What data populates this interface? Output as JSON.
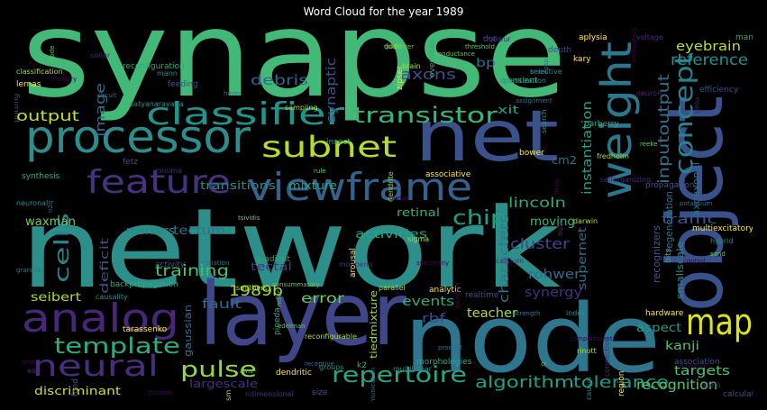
{
  "title": "Word Cloud for the year 1989",
  "chart_data": {
    "type": "wordcloud",
    "title": "Word Cloud for the year 1989",
    "background": "#000000",
    "colormap": "viridis",
    "words": [
      {
        "text": "synapse",
        "weight": 100,
        "color": "#43b977",
        "rotate": false
      },
      {
        "text": "network",
        "weight": 98,
        "color": "#2d8f8a",
        "rotate": false
      },
      {
        "text": "node",
        "weight": 72,
        "color": "#2e758e",
        "rotate": false
      },
      {
        "text": "object",
        "weight": 68,
        "color": "#3a528b",
        "rotate": true
      },
      {
        "text": "layer",
        "weight": 64,
        "color": "#3f4788",
        "rotate": false
      },
      {
        "text": "net",
        "weight": 58,
        "color": "#3b518b",
        "rotate": false
      },
      {
        "text": "processor",
        "weight": 40,
        "color": "#2c8d8c",
        "rotate": false
      },
      {
        "text": "weight",
        "weight": 38,
        "color": "#2a778e",
        "rotate": true
      },
      {
        "text": "analog",
        "weight": 36,
        "color": "#482778",
        "rotate": false
      },
      {
        "text": "view",
        "weight": 35,
        "color": "#33638d",
        "rotate": false
      },
      {
        "text": "frame",
        "weight": 35,
        "color": "#33638d",
        "rotate": false
      },
      {
        "text": "classifier",
        "weight": 32,
        "color": "#1f968b",
        "rotate": false
      },
      {
        "text": "feature",
        "weight": 30,
        "color": "#46327e",
        "rotate": false
      },
      {
        "text": "map",
        "weight": 30,
        "color": "#dde318",
        "rotate": false
      },
      {
        "text": "subnet",
        "weight": 28,
        "color": "#b5de2b",
        "rotate": false
      },
      {
        "text": "neural",
        "weight": 28,
        "color": "#472d7b",
        "rotate": false
      },
      {
        "text": "concept",
        "weight": 25,
        "color": "#26828e",
        "rotate": true
      },
      {
        "text": "transistor",
        "weight": 22,
        "color": "#35b779",
        "rotate": false
      },
      {
        "text": "template",
        "weight": 21,
        "color": "#29af7f",
        "rotate": false
      },
      {
        "text": "repertoire",
        "weight": 20,
        "color": "#22a884",
        "rotate": false
      },
      {
        "text": "pulse",
        "weight": 20,
        "color": "#95d840",
        "rotate": false
      },
      {
        "text": "chip",
        "weight": 18,
        "color": "#1fa088",
        "rotate": false
      },
      {
        "text": "cells",
        "weight": 18,
        "color": "#24868e",
        "rotate": true
      },
      {
        "text": "algorithm",
        "weight": 16,
        "color": "#1fa187",
        "rotate": false
      },
      {
        "text": "tolerance",
        "weight": 16,
        "color": "#1f9a8a",
        "rotate": false
      },
      {
        "text": "reference",
        "weight": 16,
        "color": "#21918c",
        "rotate": false
      },
      {
        "text": "inputoutput",
        "weight": 16,
        "color": "#2c728e",
        "rotate": true
      },
      {
        "text": "training",
        "weight": 15,
        "color": "#4ac16d",
        "rotate": false
      },
      {
        "text": "output",
        "weight": 14,
        "color": "#c2df23",
        "rotate": false
      },
      {
        "text": "axons",
        "weight": 14,
        "color": "#3e4c8a",
        "rotate": false
      },
      {
        "text": "debris",
        "weight": 14,
        "color": "#31688e",
        "rotate": false
      },
      {
        "text": "synaptic",
        "weight": 13,
        "color": "#3b528b",
        "rotate": true
      },
      {
        "text": "image",
        "weight": 13,
        "color": "#2e6f8e",
        "rotate": true
      },
      {
        "text": "eyebrain",
        "weight": 13,
        "color": "#b8de29",
        "rotate": false
      },
      {
        "text": "cluster",
        "weight": 14,
        "color": "#3f4889",
        "rotate": false
      },
      {
        "text": "lincoln",
        "weight": 14,
        "color": "#25ac82",
        "rotate": false
      },
      {
        "text": "characters",
        "weight": 13,
        "color": "#2a788e",
        "rotate": true
      },
      {
        "text": "instantiation",
        "weight": 13,
        "color": "#1f9e89",
        "rotate": true
      },
      {
        "text": "recognition",
        "weight": 14,
        "color": "#54c568",
        "rotate": false
      },
      {
        "text": "targets",
        "weight": 13,
        "color": "#4ec36b",
        "rotate": false
      },
      {
        "text": "synergy",
        "weight": 13,
        "color": "#472f7d",
        "rotate": false
      },
      {
        "text": "rohwer",
        "weight": 13,
        "color": "#2f6c8e",
        "rotate": false
      },
      {
        "text": "events",
        "weight": 13,
        "color": "#26ad81",
        "rotate": false
      },
      {
        "text": "teacher",
        "weight": 12,
        "color": "#a5db36",
        "rotate": false
      },
      {
        "text": "error",
        "weight": 13,
        "color": "#67cc5c",
        "rotate": false
      },
      {
        "text": "fault",
        "weight": 12,
        "color": "#2f6b8e",
        "rotate": false
      },
      {
        "text": "1989b",
        "weight": 14,
        "color": "#a8db34",
        "rotate": false
      },
      {
        "text": "moving",
        "weight": 12,
        "color": "#37b878",
        "rotate": false
      },
      {
        "text": "traffic",
        "weight": 12,
        "color": "#3a548c",
        "rotate": false
      },
      {
        "text": "activities",
        "weight": 11,
        "color": "#20a386",
        "rotate": false
      },
      {
        "text": "tectum",
        "weight": 11,
        "color": "#2e6e8e",
        "rotate": false
      },
      {
        "text": "markers",
        "weight": 11,
        "color": "#23888e",
        "rotate": false
      },
      {
        "text": "waxman",
        "weight": 11,
        "color": "#6ccd5a",
        "rotate": false
      },
      {
        "text": "deficit",
        "weight": 11,
        "color": "#3d4e8a",
        "rotate": true
      },
      {
        "text": "transitions",
        "weight": 11,
        "color": "#238a8d",
        "rotate": false
      },
      {
        "text": "mixture",
        "weight": 11,
        "color": "#22a785",
        "rotate": false
      },
      {
        "text": "retinal",
        "weight": 11,
        "color": "#2ab07f",
        "rotate": false
      },
      {
        "text": "tectal",
        "weight": 11,
        "color": "#45337d",
        "rotate": false
      },
      {
        "text": "seibert",
        "weight": 11,
        "color": "#addc30",
        "rotate": false
      },
      {
        "text": "aspect",
        "weight": 11,
        "color": "#1e9b8a",
        "rotate": false
      },
      {
        "text": "kanji",
        "weight": 11,
        "color": "#4cc26c",
        "rotate": false
      },
      {
        "text": "discriminant",
        "weight": 10,
        "color": "#d0e11c",
        "rotate": false
      },
      {
        "text": "largescale",
        "weight": 11,
        "color": "#46307e",
        "rotate": false
      },
      {
        "text": "supernet",
        "weight": 11,
        "color": "#2e6e8e",
        "rotate": true
      },
      {
        "text": "smallscale",
        "weight": 10,
        "color": "#23898e",
        "rotate": true
      },
      {
        "text": "recognizers",
        "weight": 10,
        "color": "#38588c",
        "rotate": true
      },
      {
        "text": "regeneration",
        "weight": 10,
        "color": "#2a768e",
        "rotate": true
      },
      {
        "text": "axoaxonal",
        "weight": 10,
        "color": "#2d708e",
        "rotate": true
      },
      {
        "text": "tiedmixture",
        "weight": 10,
        "color": "#a2da37",
        "rotate": true
      },
      {
        "text": "gaussian",
        "weight": 10,
        "color": "#2c718e",
        "rotate": true
      },
      {
        "text": "rbf",
        "weight": 11,
        "color": "#3e4a89",
        "rotate": false
      },
      {
        "text": "cm2",
        "weight": 10,
        "color": "#2b748e",
        "rotate": false
      },
      {
        "text": "xit",
        "weight": 10,
        "color": "#21a685",
        "rotate": false
      },
      {
        "text": "bp",
        "weight": 11,
        "color": "#2c738e",
        "rotate": false
      }
    ],
    "small_words": [
      "capacitor",
      "voltage",
      "dot",
      "epsp",
      "selective",
      "transient",
      "conductance",
      "dodo",
      "zipser",
      "chiel",
      "neuron",
      "efficiency",
      "assignment",
      "search",
      "parberry",
      "reeke",
      "fredholm",
      "bower",
      "firing",
      "selforganizing",
      "propagation",
      "potassium",
      "hybrid",
      "bits",
      "sand",
      "darwin",
      "multiexcitatory",
      "control",
      "outer",
      "feeding",
      "hmm",
      "mann",
      "reconfiguration",
      "node",
      "classification",
      "lernas",
      "memory",
      "sonar",
      "putting",
      "circuit",
      "satyanarayana",
      "insect",
      "rule",
      "dendrite",
      "associative",
      "queue",
      "minima",
      "fetz",
      "n2q",
      "neuronal",
      "synthesis",
      "tsividis",
      "sigma",
      "arousal",
      "synchrony",
      "moopenn",
      "activity",
      "satiation",
      "stimulation",
      "gradient",
      "consummatory",
      "parallel",
      "analytic",
      "directed",
      "calcium",
      "realtime",
      "strength",
      "index",
      "pineda",
      "edelman",
      "reconfigurable",
      "hardware",
      "compartments",
      "connection",
      "association",
      "granular",
      "causality",
      "backpropagation",
      "msec",
      "smithers",
      "tarassenko",
      "time",
      "eqn",
      "food",
      "receptive",
      "groups",
      "k2",
      "ams",
      "rsm",
      "dendritic",
      "donnett",
      "ndimensional",
      "size",
      "communication",
      "multilinear",
      "morphologies",
      "cr",
      "rinott",
      "region",
      "obradovic",
      "stein",
      "calculators",
      "product",
      "causal",
      "manipulator",
      "threshold",
      "sampling",
      "aplysia",
      "computers",
      "thakour",
      "depth",
      "beer",
      "quantization",
      "overhead",
      "quantizer",
      "brain",
      "kary",
      "grt",
      "gmu"
    ]
  }
}
